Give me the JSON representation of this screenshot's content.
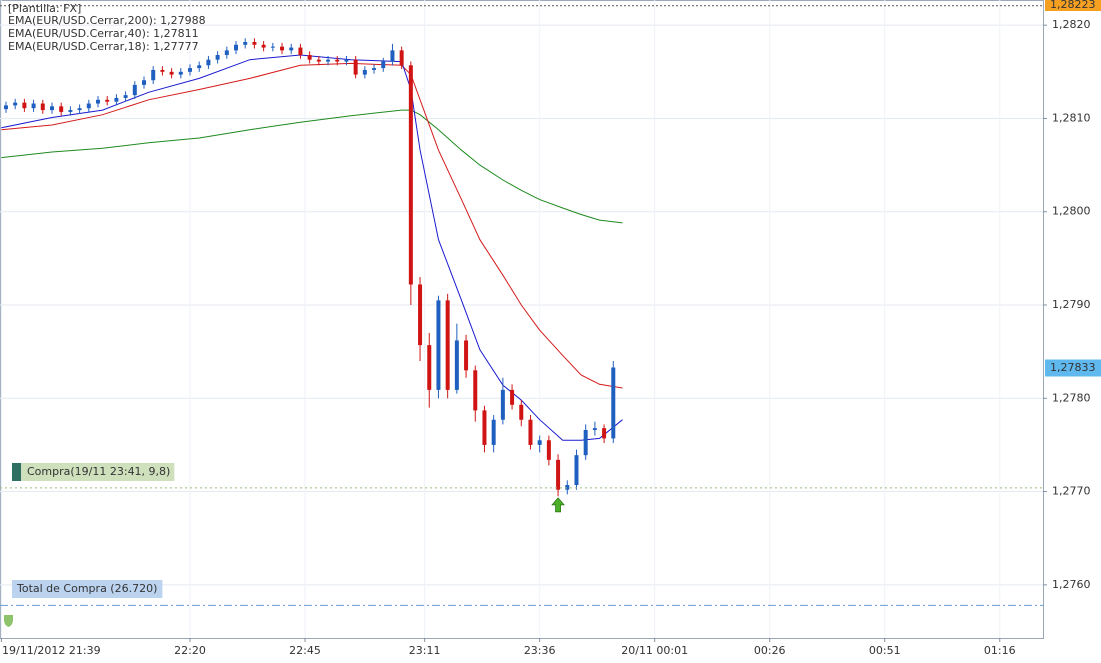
{
  "chart_data": {
    "type": "candlestick",
    "template": "[Plantilla: FX]",
    "xlim": [
      38.7,
      265.4
    ],
    "ylim": [
      1.27543,
      1.28227
    ],
    "grid": true,
    "xticks": [
      {
        "value": 39,
        "label": "19/11/2012 21:39"
      },
      {
        "value": 80,
        "label": "22:20"
      },
      {
        "value": 105,
        "label": "22:45"
      },
      {
        "value": 131,
        "label": "23:11"
      },
      {
        "value": 156,
        "label": "23:36"
      },
      {
        "value": 181,
        "label": "20/11 00:01"
      },
      {
        "value": 206,
        "label": "00:26"
      },
      {
        "value": 231,
        "label": "00:51"
      },
      {
        "value": 256,
        "label": "01:16"
      }
    ],
    "yticks": [
      {
        "value": 1.276,
        "label": "1,2760"
      },
      {
        "value": 1.277,
        "label": "1,2770"
      },
      {
        "value": 1.278,
        "label": "1,2780"
      },
      {
        "value": 1.279,
        "label": "1,2790"
      },
      {
        "value": 1.28,
        "label": "1,2800"
      },
      {
        "value": 1.281,
        "label": "1,2810"
      },
      {
        "value": 1.282,
        "label": "1,2820"
      }
    ],
    "last_price": {
      "value": 1.27833,
      "label": "1,27833"
    },
    "top_price": {
      "value": 1.28223,
      "label": "1,28223"
    },
    "candles": {
      "up_color": "#1f5fbf",
      "down_color": "#d01414",
      "x": [
        40,
        42,
        44,
        46,
        48,
        50,
        52,
        54,
        56,
        58,
        60,
        62,
        64,
        66,
        68,
        70,
        72,
        74,
        76,
        78,
        80,
        82,
        84,
        86,
        88,
        90,
        92,
        94,
        96,
        98,
        100,
        102,
        104,
        106,
        108,
        110,
        112,
        114,
        116,
        118,
        120,
        122,
        124,
        126,
        128,
        130,
        132,
        134,
        136,
        138,
        140,
        142,
        144,
        146,
        148,
        150,
        152,
        154,
        156,
        158,
        160,
        162,
        164,
        166,
        168,
        170,
        172
      ],
      "open": [
        1.2811,
        1.28114,
        1.28117,
        1.28111,
        1.28116,
        1.28109,
        1.28113,
        1.28107,
        1.28109,
        1.28111,
        1.28116,
        1.2812,
        1.28118,
        1.28122,
        1.28125,
        1.28136,
        1.28141,
        1.28152,
        1.2815,
        1.28147,
        1.2815,
        1.28154,
        1.28157,
        1.28163,
        1.28168,
        1.28173,
        1.28179,
        1.28182,
        1.28179,
        1.28176,
        1.28177,
        1.28173,
        1.28176,
        1.28168,
        1.28163,
        1.28161,
        1.28163,
        1.28161,
        1.28163,
        1.28147,
        1.28152,
        1.28154,
        1.28161,
        1.28173,
        1.28157,
        1.27922,
        1.27857,
        1.27809,
        1.27905,
        1.27809,
        1.27862,
        1.2783,
        1.27787,
        1.2775,
        1.27777,
        1.27809,
        1.27793,
        1.27777,
        1.2775,
        1.27755,
        1.27734,
        1.27702,
        1.27707,
        1.27739,
        1.27766,
        1.27768,
        1.27757
      ],
      "high": [
        1.28118,
        1.28121,
        1.28121,
        1.2812,
        1.2812,
        1.28117,
        1.28117,
        1.28113,
        1.28115,
        1.2812,
        1.28124,
        1.28124,
        1.28126,
        1.28129,
        1.2814,
        1.28145,
        1.28156,
        1.28156,
        1.28154,
        1.28154,
        1.28158,
        1.28161,
        1.28167,
        1.28172,
        1.28177,
        1.28183,
        1.28186,
        1.28186,
        1.28183,
        1.28181,
        1.28181,
        1.2818,
        1.2818,
        1.28172,
        1.28167,
        1.28167,
        1.28167,
        1.28167,
        1.28167,
        1.28156,
        1.28158,
        1.28165,
        1.2818,
        1.28177,
        1.28161,
        1.2793,
        1.2787,
        1.2791,
        1.27912,
        1.2788,
        1.27868,
        1.27835,
        1.27792,
        1.27782,
        1.27822,
        1.27815,
        1.27798,
        1.27782,
        1.2776,
        1.2776,
        1.2774,
        1.27712,
        1.27745,
        1.27772,
        1.27775,
        1.27772,
        1.2784
      ],
      "low": [
        1.28106,
        1.2811,
        1.28107,
        1.28107,
        1.28105,
        1.28105,
        1.28103,
        1.28103,
        1.28105,
        1.28107,
        1.28112,
        1.28114,
        1.28114,
        1.28118,
        1.28121,
        1.28132,
        1.28137,
        1.28146,
        1.28143,
        1.28143,
        1.28146,
        1.2815,
        1.28153,
        1.28159,
        1.28164,
        1.28169,
        1.28175,
        1.28175,
        1.28172,
        1.28172,
        1.28169,
        1.28169,
        1.28164,
        1.28159,
        1.28157,
        1.28157,
        1.28157,
        1.28157,
        1.28143,
        1.28143,
        1.28148,
        1.2815,
        1.28157,
        1.28153,
        1.279,
        1.2784,
        1.2779,
        1.278,
        1.278,
        1.27805,
        1.27822,
        1.27775,
        1.27742,
        1.27742,
        1.27772,
        1.27788,
        1.2777,
        1.27745,
        1.27742,
        1.27728,
        1.27695,
        1.27697,
        1.27702,
        1.27734,
        1.2776,
        1.27752,
        1.27752
      ],
      "close": [
        1.28114,
        1.28117,
        1.28111,
        1.28116,
        1.28109,
        1.28113,
        1.28107,
        1.28109,
        1.28111,
        1.28116,
        1.2812,
        1.28118,
        1.28122,
        1.28125,
        1.28136,
        1.28141,
        1.28152,
        1.2815,
        1.28147,
        1.2815,
        1.28154,
        1.28157,
        1.28163,
        1.28168,
        1.28173,
        1.28179,
        1.28182,
        1.28179,
        1.28176,
        1.28177,
        1.28173,
        1.28176,
        1.28168,
        1.28163,
        1.28161,
        1.28163,
        1.28161,
        1.28163,
        1.28147,
        1.28152,
        1.28154,
        1.28161,
        1.28173,
        1.28157,
        1.27922,
        1.27857,
        1.27809,
        1.27905,
        1.27809,
        1.27862,
        1.2783,
        1.27787,
        1.2775,
        1.27777,
        1.27809,
        1.27793,
        1.27777,
        1.2775,
        1.27755,
        1.27734,
        1.27702,
        1.27707,
        1.27739,
        1.27766,
        1.27768,
        1.27757,
        1.27833
      ]
    },
    "series": [
      {
        "name": "EMA(EUR/USD.Cerrar,200): 1,27988",
        "color": "#1e8a1e",
        "x": [
          39,
          50,
          61,
          71,
          82,
          93,
          104,
          115,
          126,
          128,
          130,
          134,
          139,
          143,
          148,
          152,
          156,
          161,
          165,
          169,
          174
        ],
        "values": [
          1.28058,
          1.28064,
          1.28068,
          1.28074,
          1.28079,
          1.28088,
          1.28096,
          1.28103,
          1.28109,
          1.28109,
          1.28104,
          1.28088,
          1.28066,
          1.2805,
          1.28034,
          1.28023,
          1.28013,
          1.28004,
          1.27997,
          1.27991,
          1.27988
        ]
      },
      {
        "name": "EMA(EUR/USD.Cerrar,40): 1,27811",
        "color": "#d41a1a",
        "x": [
          39,
          50,
          61,
          71,
          82,
          93,
          104,
          115,
          126,
          128,
          130,
          134,
          139,
          143,
          148,
          152,
          156,
          161,
          165,
          169,
          174
        ],
        "values": [
          1.28088,
          1.28093,
          1.28104,
          1.2812,
          1.28131,
          1.28143,
          1.28157,
          1.28159,
          1.28157,
          1.28147,
          1.2812,
          1.28066,
          1.28013,
          1.2797,
          1.27932,
          1.279,
          1.27873,
          1.27846,
          1.27825,
          1.27815,
          1.27811
        ]
      },
      {
        "name": "EMA(EUR/USD.Cerrar,18): 1,27777",
        "color": "#1a1ad0",
        "x": [
          39,
          50,
          61,
          71,
          82,
          93,
          104,
          115,
          126,
          128,
          130,
          134,
          139,
          143,
          148,
          152,
          156,
          161,
          165,
          169,
          174
        ],
        "values": [
          1.2809,
          1.28101,
          1.28109,
          1.28128,
          1.28143,
          1.28163,
          1.28168,
          1.28163,
          1.28161,
          1.28131,
          1.28066,
          1.2797,
          1.27905,
          1.27852,
          1.27814,
          1.27798,
          1.27777,
          1.27755,
          1.27755,
          1.27757,
          1.27777
        ]
      }
    ],
    "annotations": [
      {
        "text": "Compra(19/11 23:41, 9,8)",
        "value": 1.27704,
        "x": 160,
        "color": "#9aba7a"
      },
      {
        "text": "Total de Compra (26.720)",
        "value": 1.27578,
        "color": "#6a9ad8"
      }
    ]
  }
}
